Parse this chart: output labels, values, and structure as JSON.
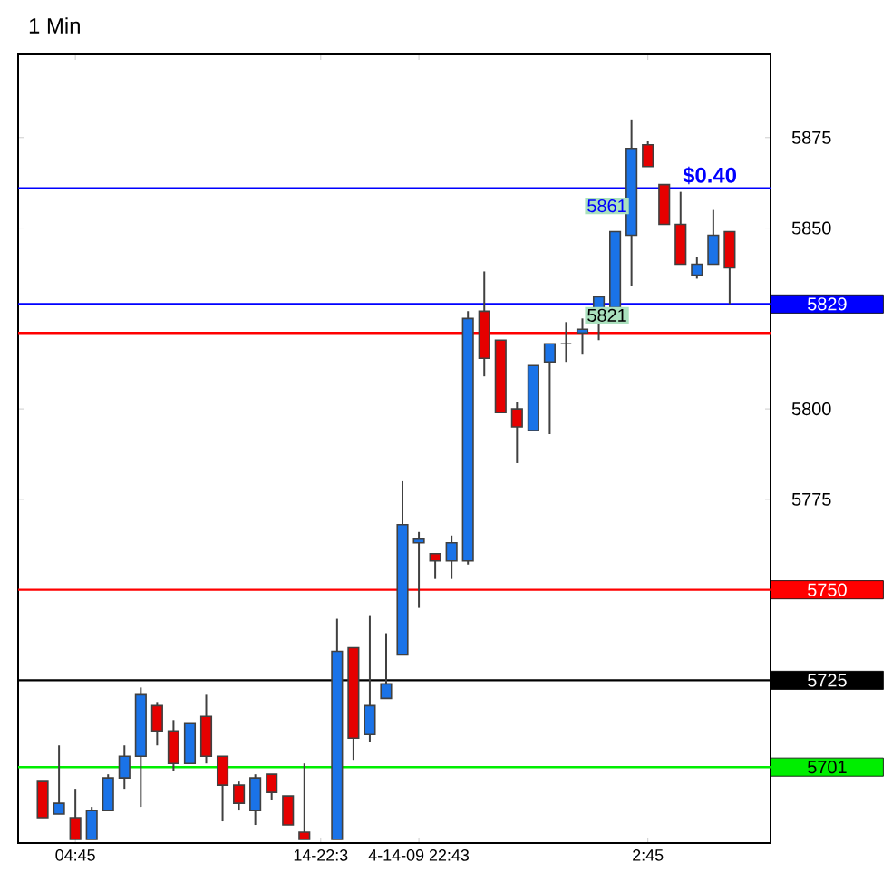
{
  "chart_data": {
    "type": "candlestick",
    "title": "1 Min",
    "categories": [
      null,
      null,
      null,
      "04:45",
      null,
      null,
      null,
      null,
      null,
      null,
      null,
      null,
      null,
      null,
      null,
      null,
      null,
      null,
      "14-22:3",
      null,
      null,
      null,
      null,
      null,
      "4-14-09 22:43",
      null,
      null,
      null,
      null,
      null,
      null,
      null,
      null,
      null,
      null,
      null,
      null,
      null,
      "2:45",
      null,
      null,
      null,
      null,
      null,
      null,
      null
    ],
    "ohlc": [
      null,
      [
        5697,
        5697,
        5687,
        5687
      ],
      [
        5688,
        5707,
        5688,
        5691
      ],
      [
        5687,
        5695,
        5681,
        5681
      ],
      [
        5681,
        5690,
        5681,
        5689
      ],
      [
        5689,
        5699,
        5689,
        5698
      ],
      [
        5698,
        5707,
        5695,
        5704
      ],
      [
        5704,
        5723,
        5690,
        5721
      ],
      [
        5718,
        5719,
        5707,
        5711
      ],
      [
        5711,
        5714,
        5700,
        5702
      ],
      [
        5702,
        5713,
        5702,
        5713
      ],
      [
        5715,
        5721,
        5702,
        5704
      ],
      [
        5704,
        5704,
        5686,
        5696
      ],
      [
        5696,
        5697,
        5689,
        5691
      ],
      [
        5689,
        5699,
        5685,
        5698
      ],
      [
        5699,
        5699,
        5692,
        5694
      ],
      [
        5693,
        5693,
        5685,
        5685
      ],
      [
        5683,
        5702,
        5681,
        5681
      ],
      null,
      [
        5681,
        5742,
        5681,
        5733
      ],
      [
        5734,
        5734,
        5703,
        5709
      ],
      [
        5710,
        5743,
        5708,
        5718
      ],
      [
        5720,
        5738,
        5720,
        5724
      ],
      [
        5732,
        5780,
        5732,
        5768
      ],
      [
        5763,
        5766,
        5745,
        5764
      ],
      [
        5760,
        5760,
        5753,
        5758
      ],
      [
        5758,
        5765,
        5753,
        5763
      ],
      [
        5758,
        5827,
        5757,
        5825
      ],
      [
        5827,
        5838,
        5809,
        5814
      ],
      [
        5819,
        5819,
        5799,
        5799
      ],
      [
        5800,
        5802,
        5785,
        5795
      ],
      [
        5794,
        5812,
        5794,
        5812
      ],
      [
        5813,
        5818,
        5793,
        5818
      ],
      [
        5818,
        5824,
        5813,
        5818
      ],
      [
        5821,
        5825,
        5815,
        5822
      ],
      [
        5824,
        5831,
        5819,
        5831
      ],
      [
        5828,
        5849,
        5828,
        5849
      ],
      [
        5848,
        5880,
        5834,
        5872
      ],
      [
        5873,
        5874,
        5867,
        5867
      ],
      [
        5862,
        5862,
        5851,
        5851
      ],
      [
        5851,
        5860,
        5840,
        5840
      ],
      [
        5837,
        5842,
        5836,
        5840
      ],
      [
        5840,
        5855,
        5840,
        5848
      ],
      [
        5849,
        5849,
        5829,
        5839
      ],
      null,
      null
    ],
    "colors": [
      null,
      "#e60000",
      "#1a73e8",
      "#e60000",
      "#1a73e8",
      "#1a73e8",
      "#1a73e8",
      "#1a73e8",
      "#e60000",
      "#e60000",
      "#1a73e8",
      "#e60000",
      "#e60000",
      "#e60000",
      "#1a73e8",
      "#e60000",
      "#e60000",
      "#e60000",
      null,
      "#1a73e8",
      "#e60000",
      "#1a73e8",
      "#1a73e8",
      "#1a73e8",
      "#1a73e8",
      "#e60000",
      "#1a73e8",
      "#1a73e8",
      "#e60000",
      "#e60000",
      "#e60000",
      "#1a73e8",
      "#1a73e8",
      "#404040",
      "#1a73e8",
      "#1a73e8",
      "#1a73e8",
      "#1a73e8",
      "#e60000",
      "#e60000",
      "#e60000",
      "#1a73e8",
      "#1a73e8",
      "#e60000",
      null,
      null
    ],
    "ylim": [
      5680,
      5898
    ],
    "yticks": [
      5775,
      5800,
      5850,
      5875
    ],
    "ref_lines": [
      {
        "axis": "y",
        "value": 5829,
        "label": "5829",
        "color": "#0000ff"
      },
      {
        "axis": "y",
        "value": 5750,
        "label": "5750",
        "color": "#ff0000"
      },
      {
        "axis": "y",
        "value": 5725,
        "label": "5725",
        "color": "#000000"
      },
      {
        "axis": "y",
        "value": 5701,
        "label": "5701",
        "color": "#00ee00"
      },
      {
        "axis": "y",
        "value": 5861,
        "color": "#0000ff"
      },
      {
        "axis": "y",
        "value": 5821,
        "color": "#ff0000"
      }
    ],
    "annotations": [
      {
        "text": "$0.40",
        "y": 5861
      },
      {
        "text": "5861",
        "y": 5861
      },
      {
        "text": "5821",
        "y": 5821
      }
    ]
  }
}
